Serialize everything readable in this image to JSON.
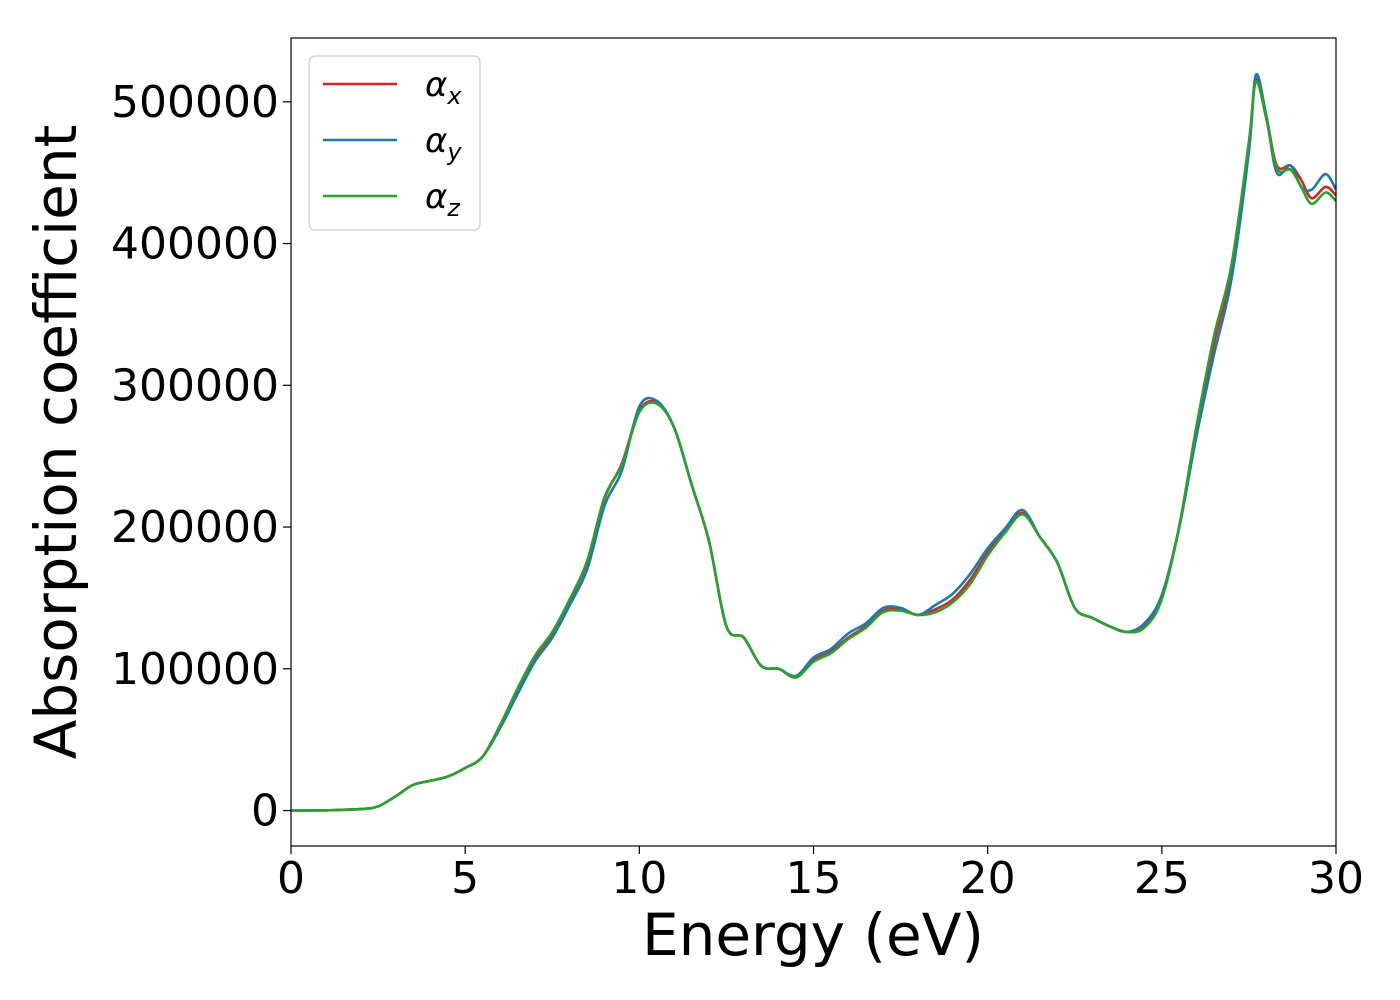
{
  "chart_data": {
    "type": "line",
    "title": "",
    "xlabel": "Energy (eV)",
    "ylabel": "Absorption coefficient",
    "xlim": [
      0,
      30
    ],
    "ylim": [
      -25000,
      545000
    ],
    "xticks": [
      0,
      5,
      10,
      15,
      20,
      25,
      30
    ],
    "yticks": [
      0,
      100000,
      200000,
      300000,
      400000,
      500000
    ],
    "xtick_labels": [
      "0",
      "5",
      "10",
      "15",
      "20",
      "25",
      "30"
    ],
    "ytick_labels": [
      "0",
      "100000",
      "200000",
      "300000",
      "400000",
      "500000"
    ],
    "grid": false,
    "legend": "top-left",
    "x": [
      0,
      1,
      2,
      2.5,
      3,
      3.5,
      4,
      4.5,
      5,
      5.5,
      6,
      6.5,
      7,
      7.5,
      8,
      8.5,
      9,
      9.5,
      10,
      10.5,
      11,
      11.5,
      12,
      12.5,
      13,
      13.5,
      14,
      14.5,
      15,
      15.5,
      16,
      16.5,
      17,
      17.5,
      18,
      18.5,
      19,
      19.5,
      20,
      20.5,
      21,
      21.5,
      22,
      22.5,
      23,
      23.5,
      24,
      24.5,
      25,
      25.5,
      26,
      26.5,
      27,
      27.5,
      27.7,
      28,
      28.3,
      28.7,
      29,
      29.3,
      29.7,
      30
    ],
    "series": [
      {
        "name": "α",
        "subscript": "x",
        "color": "#d62728",
        "values": [
          0,
          200,
          1000,
          3000,
          10000,
          18000,
          21000,
          24000,
          30000,
          38000,
          60000,
          85000,
          108000,
          125000,
          148000,
          175000,
          220000,
          245000,
          282000,
          288000,
          270000,
          230000,
          190000,
          130000,
          122000,
          102000,
          100000,
          94000,
          106000,
          112000,
          122000,
          130000,
          141000,
          142000,
          138000,
          142000,
          149000,
          163000,
          182000,
          197000,
          210000,
          193000,
          175000,
          143000,
          136000,
          130000,
          126000,
          130000,
          150000,
          200000,
          270000,
          330000,
          380000,
          470000,
          516000,
          490000,
          455000,
          455000,
          445000,
          432000,
          440000,
          434000
        ]
      },
      {
        "name": "α",
        "subscript": "y",
        "color": "#1f77b4",
        "values": [
          0,
          200,
          1000,
          3000,
          10000,
          18000,
          21000,
          24000,
          30000,
          38000,
          58000,
          82000,
          105000,
          122000,
          145000,
          170000,
          215000,
          240000,
          285000,
          289000,
          270000,
          230000,
          190000,
          130000,
          122000,
          102000,
          100000,
          95000,
          108000,
          114000,
          125000,
          132000,
          143000,
          143000,
          138000,
          145000,
          153000,
          167000,
          185000,
          199000,
          212000,
          193000,
          175000,
          143000,
          136000,
          130000,
          126000,
          132000,
          152000,
          200000,
          265000,
          322000,
          375000,
          465000,
          519000,
          490000,
          450000,
          455000,
          440000,
          438000,
          449000,
          438000
        ]
      },
      {
        "name": "α",
        "subscript": "z",
        "color": "#2ca02c",
        "values": [
          0,
          200,
          1000,
          3000,
          10000,
          18000,
          21000,
          24000,
          30000,
          38000,
          60000,
          86000,
          109000,
          126000,
          149000,
          176000,
          221000,
          244000,
          281000,
          287000,
          270000,
          230000,
          190000,
          130000,
          122000,
          102000,
          100000,
          94000,
          105000,
          111000,
          121000,
          129000,
          140000,
          141000,
          138000,
          140000,
          147000,
          160000,
          180000,
          196000,
          209000,
          193000,
          175000,
          143000,
          136000,
          130000,
          126000,
          129000,
          149000,
          201000,
          272000,
          335000,
          385000,
          472000,
          514000,
          488000,
          453000,
          452000,
          440000,
          428000,
          436000,
          430000
        ]
      }
    ]
  }
}
